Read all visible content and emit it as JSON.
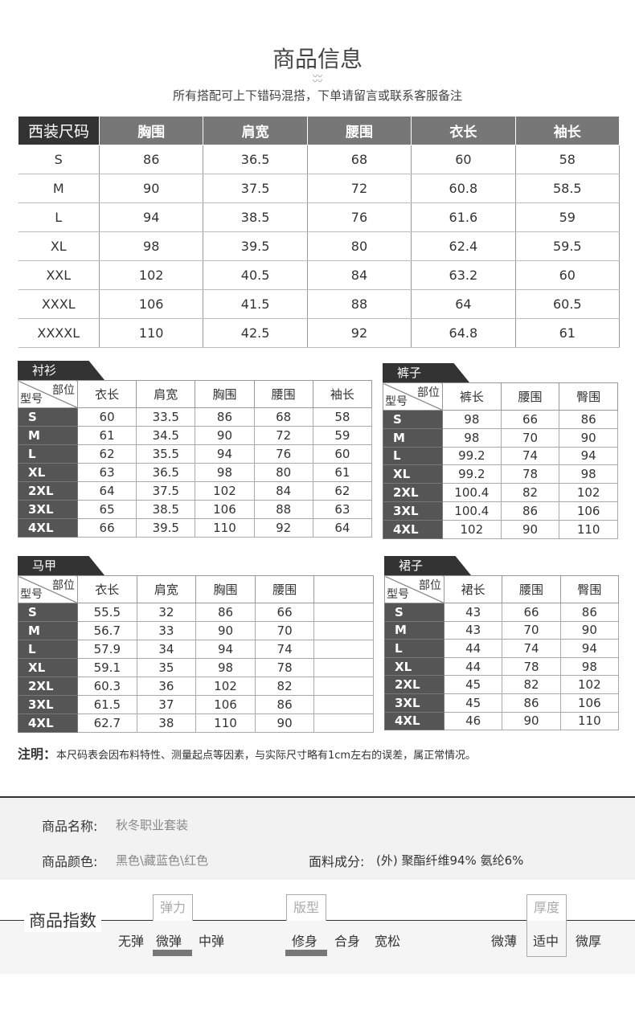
{
  "header": {
    "title": "商品信息",
    "subtitle": "所有搭配可上下错码混搭，下单请留言或联系客服备注"
  },
  "suit_table": {
    "headers": [
      "西装尺码",
      "胸围",
      "肩宽",
      "腰围",
      "衣长",
      "袖长"
    ],
    "rows": [
      [
        "S",
        "86",
        "36.5",
        "68",
        "60",
        "58"
      ],
      [
        "M",
        "90",
        "37.5",
        "72",
        "60.8",
        "58.5"
      ],
      [
        "L",
        "94",
        "38.5",
        "76",
        "61.6",
        "59"
      ],
      [
        "XL",
        "98",
        "39.5",
        "80",
        "62.4",
        "59.5"
      ],
      [
        "XXL",
        "102",
        "40.5",
        "84",
        "63.2",
        "60"
      ],
      [
        "XXXL",
        "106",
        "41.5",
        "88",
        "64",
        "60.5"
      ],
      [
        "XXXXL",
        "110",
        "42.5",
        "92",
        "64.8",
        "61"
      ]
    ]
  },
  "corner": {
    "part": "部位",
    "size": "型号"
  },
  "shirt": {
    "tab": "衬衫",
    "headers": [
      "衣长",
      "肩宽",
      "胸围",
      "腰围",
      "袖长"
    ],
    "rows": [
      [
        "S",
        "60",
        "33.5",
        "86",
        "68",
        "58"
      ],
      [
        "M",
        "61",
        "34.5",
        "90",
        "72",
        "59"
      ],
      [
        "L",
        "62",
        "35.5",
        "94",
        "76",
        "60"
      ],
      [
        "XL",
        "63",
        "36.5",
        "98",
        "80",
        "61"
      ],
      [
        "2XL",
        "64",
        "37.5",
        "102",
        "84",
        "62"
      ],
      [
        "3XL",
        "65",
        "38.5",
        "106",
        "88",
        "63"
      ],
      [
        "4XL",
        "66",
        "39.5",
        "110",
        "92",
        "64"
      ]
    ]
  },
  "pants": {
    "tab": "裤子",
    "headers": [
      "裤长",
      "腰围",
      "臀围"
    ],
    "rows": [
      [
        "S",
        "98",
        "66",
        "86"
      ],
      [
        "M",
        "98",
        "70",
        "90"
      ],
      [
        "L",
        "99.2",
        "74",
        "94"
      ],
      [
        "XL",
        "99.2",
        "78",
        "98"
      ],
      [
        "2XL",
        "100.4",
        "82",
        "102"
      ],
      [
        "3XL",
        "100.4",
        "86",
        "106"
      ],
      [
        "4XL",
        "102",
        "90",
        "110"
      ]
    ]
  },
  "vest": {
    "tab": "马甲",
    "headers": [
      "衣长",
      "肩宽",
      "胸围",
      "腰围",
      ""
    ],
    "rows": [
      [
        "S",
        "55.5",
        "32",
        "86",
        "66",
        ""
      ],
      [
        "M",
        "56.7",
        "33",
        "90",
        "70",
        ""
      ],
      [
        "L",
        "57.9",
        "34",
        "94",
        "74",
        ""
      ],
      [
        "XL",
        "59.1",
        "35",
        "98",
        "78",
        ""
      ],
      [
        "2XL",
        "60.3",
        "36",
        "102",
        "82",
        ""
      ],
      [
        "3XL",
        "61.5",
        "37",
        "106",
        "86",
        ""
      ],
      [
        "4XL",
        "62.7",
        "38",
        "110",
        "90",
        ""
      ]
    ]
  },
  "skirt": {
    "tab": "裙子",
    "headers": [
      "裙长",
      "腰围",
      "臀围"
    ],
    "rows": [
      [
        "S",
        "43",
        "66",
        "86"
      ],
      [
        "M",
        "43",
        "70",
        "90"
      ],
      [
        "L",
        "44",
        "74",
        "94"
      ],
      [
        "XL",
        "44",
        "78",
        "98"
      ],
      [
        "2XL",
        "45",
        "82",
        "102"
      ],
      [
        "3XL",
        "45",
        "86",
        "106"
      ],
      [
        "4XL",
        "46",
        "90",
        "110"
      ]
    ]
  },
  "note": {
    "label": "注明：",
    "text": "本尺码表会因布料特性、测量起点等因素，与实际尺寸略有1cm左右的误差，属正常情况。"
  },
  "info": {
    "name_label": "商品名称:",
    "name_value": "秋冬职业套装",
    "color_label": "商品颜色:",
    "color_value": "黑色\\藏蓝色\\红色",
    "fabric_label": "面料成分:",
    "fabric_value": "(外) 聚酯纤维94%  氨纶6%"
  },
  "index": {
    "title": "商品指数",
    "elastic": {
      "label": "弹力",
      "options": [
        "无弹",
        "微弹",
        "中弹"
      ],
      "selected": "微弹"
    },
    "fit": {
      "label": "版型",
      "options": [
        "修身",
        "合身",
        "宽松"
      ],
      "selected": "修身"
    },
    "thickness": {
      "label": "厚度",
      "options": [
        "微薄",
        "适中",
        "微厚"
      ],
      "selected": "适中"
    }
  }
}
